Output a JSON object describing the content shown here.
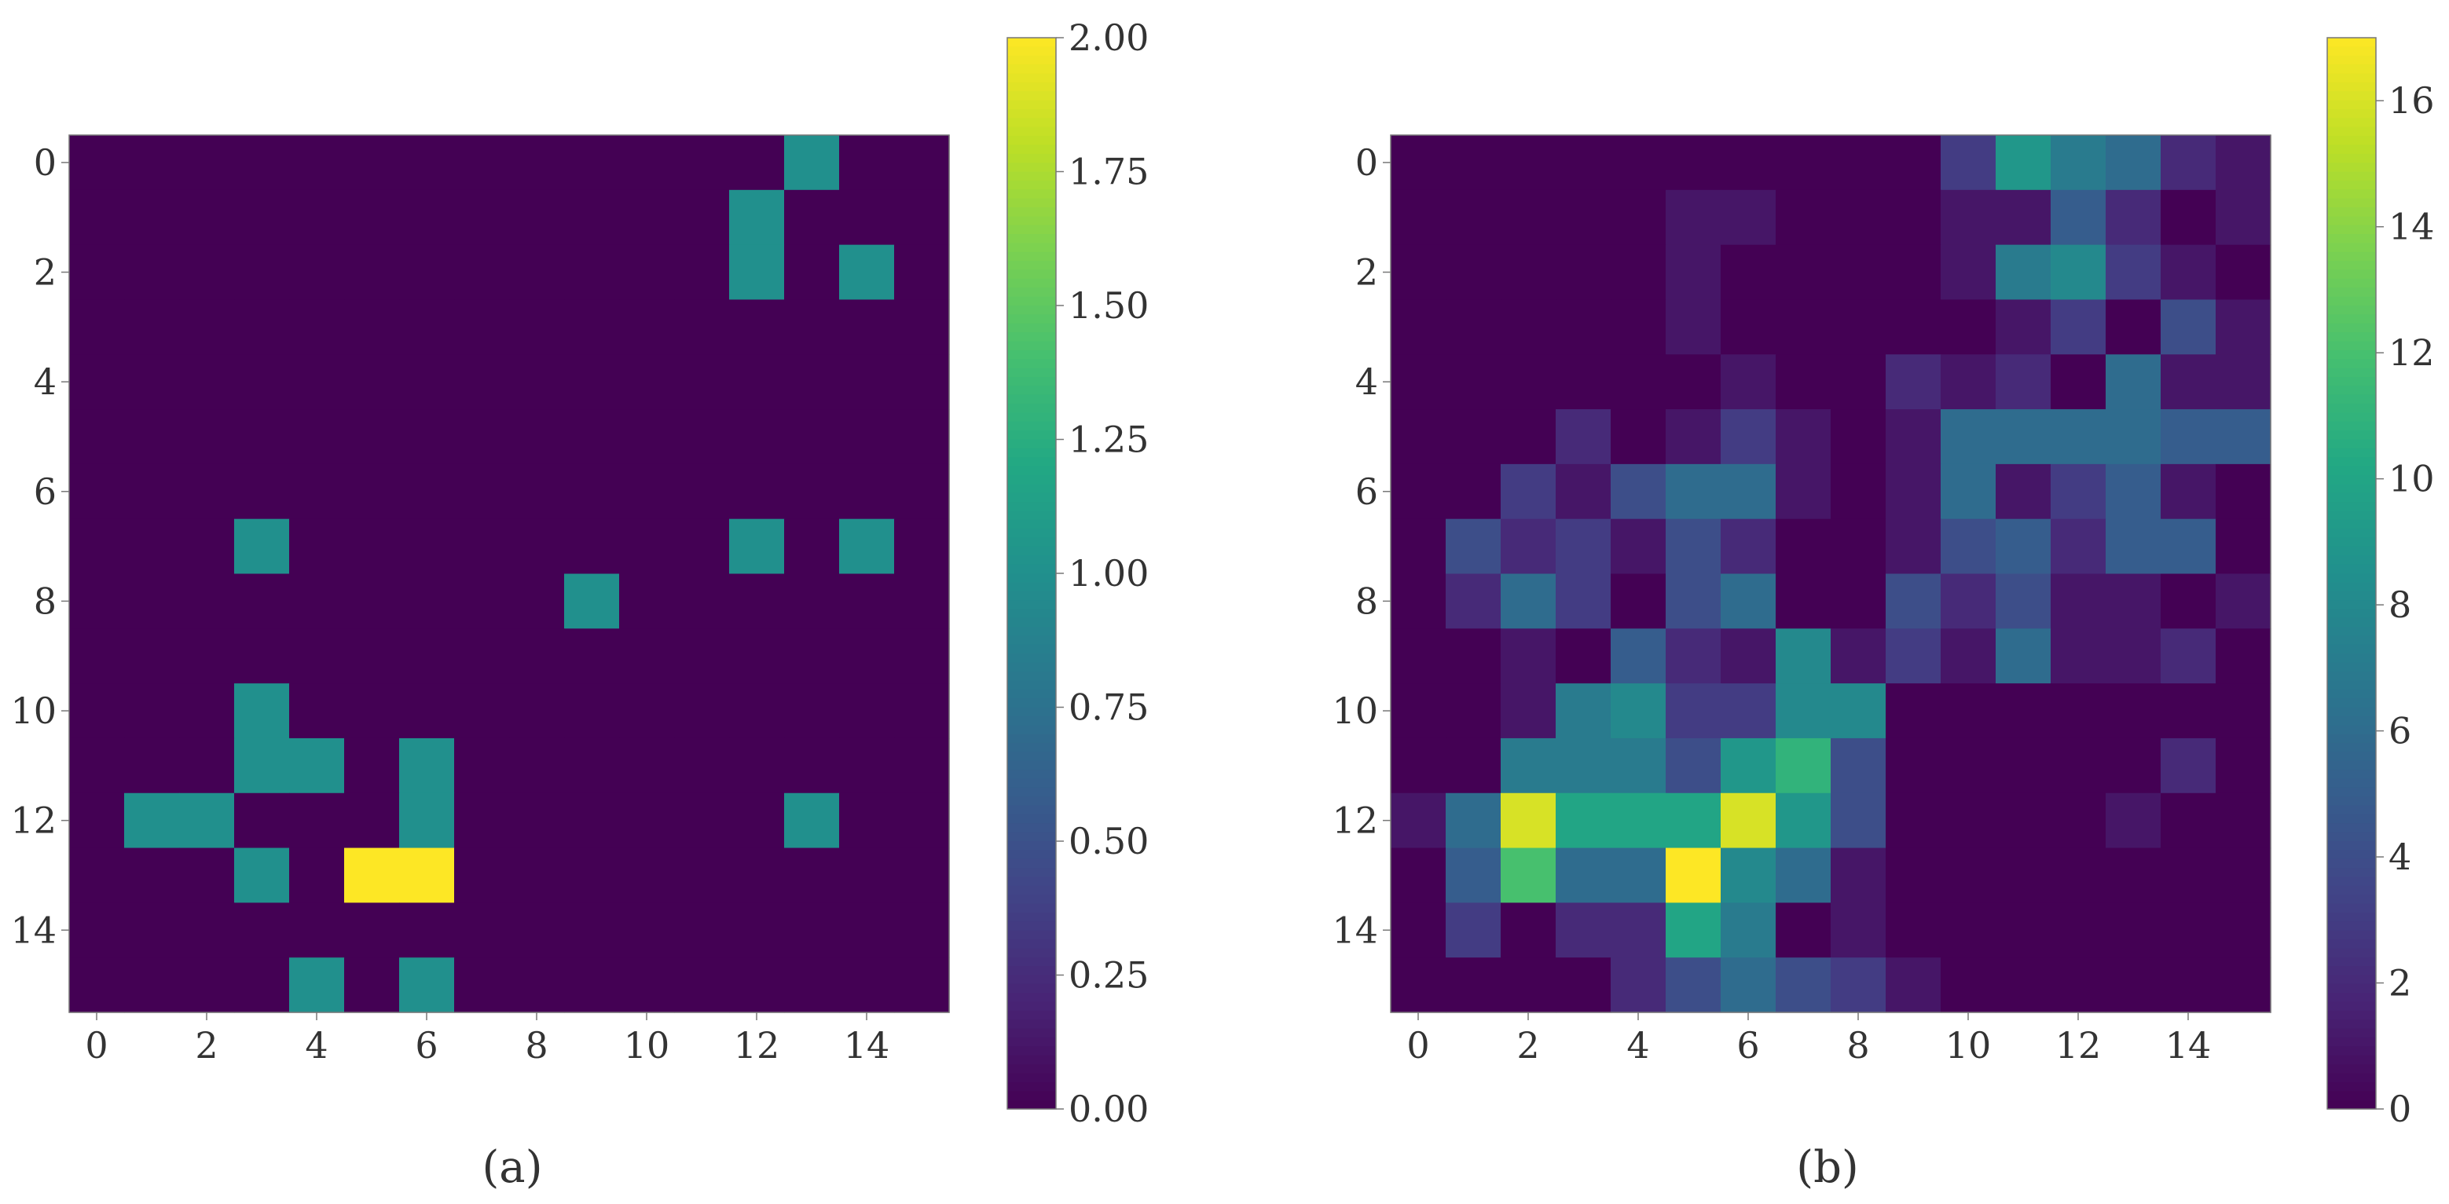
{
  "colors": {
    "colormap": "viridis",
    "frame": "#777777",
    "text": "#333333"
  },
  "chart_data": [
    {
      "type": "heatmap",
      "caption": "(a)",
      "rows": 16,
      "cols": 16,
      "vmin": 0,
      "vmax": 2,
      "x_ticks": [
        0,
        2,
        4,
        6,
        8,
        10,
        12,
        14
      ],
      "y_ticks": [
        0,
        2,
        4,
        6,
        8,
        10,
        12,
        14
      ],
      "tick_labels": {
        "x": [
          "0",
          "2",
          "4",
          "6",
          "8",
          "10",
          "12",
          "14"
        ],
        "y": [
          "0",
          "2",
          "4",
          "6",
          "8",
          "10",
          "12",
          "14"
        ]
      },
      "colorbar_ticks": [
        0,
        0.25,
        0.5,
        0.75,
        1,
        1.25,
        1.5,
        1.75,
        2
      ],
      "colorbar_tick_labels": [
        "0.00",
        "0.25",
        "0.50",
        "0.75",
        "1.00",
        "1.25",
        "1.50",
        "1.75",
        "2.00"
      ],
      "values": [
        [
          0,
          0,
          0,
          0,
          0,
          0,
          0,
          0,
          0,
          0,
          0,
          0,
          0,
          1,
          0,
          0
        ],
        [
          0,
          0,
          0,
          0,
          0,
          0,
          0,
          0,
          0,
          0,
          0,
          0,
          1,
          0,
          0,
          0
        ],
        [
          0,
          0,
          0,
          0,
          0,
          0,
          0,
          0,
          0,
          0,
          0,
          0,
          1,
          0,
          1,
          0
        ],
        [
          0,
          0,
          0,
          0,
          0,
          0,
          0,
          0,
          0,
          0,
          0,
          0,
          0,
          0,
          0,
          0
        ],
        [
          0,
          0,
          0,
          0,
          0,
          0,
          0,
          0,
          0,
          0,
          0,
          0,
          0,
          0,
          0,
          0
        ],
        [
          0,
          0,
          0,
          0,
          0,
          0,
          0,
          0,
          0,
          0,
          0,
          0,
          0,
          0,
          0,
          0
        ],
        [
          0,
          0,
          0,
          0,
          0,
          0,
          0,
          0,
          0,
          0,
          0,
          0,
          0,
          0,
          0,
          0
        ],
        [
          0,
          0,
          0,
          1,
          0,
          0,
          0,
          0,
          0,
          0,
          0,
          0,
          1,
          0,
          1,
          0
        ],
        [
          0,
          0,
          0,
          0,
          0,
          0,
          0,
          0,
          0,
          1,
          0,
          0,
          0,
          0,
          0,
          0
        ],
        [
          0,
          0,
          0,
          0,
          0,
          0,
          0,
          0,
          0,
          0,
          0,
          0,
          0,
          0,
          0,
          0
        ],
        [
          0,
          0,
          0,
          1,
          0,
          0,
          0,
          0,
          0,
          0,
          0,
          0,
          0,
          0,
          0,
          0
        ],
        [
          0,
          0,
          0,
          1,
          1,
          0,
          1,
          0,
          0,
          0,
          0,
          0,
          0,
          0,
          0,
          0
        ],
        [
          0,
          1,
          1,
          0,
          0,
          0,
          1,
          0,
          0,
          0,
          0,
          0,
          0,
          1,
          0,
          0
        ],
        [
          0,
          0,
          0,
          1,
          0,
          2,
          2,
          0,
          0,
          0,
          0,
          0,
          0,
          0,
          0,
          0
        ],
        [
          0,
          0,
          0,
          0,
          0,
          0,
          0,
          0,
          0,
          0,
          0,
          0,
          0,
          0,
          0,
          0
        ],
        [
          0,
          0,
          0,
          0,
          1,
          0,
          1,
          0,
          0,
          0,
          0,
          0,
          0,
          0,
          0,
          0
        ]
      ]
    },
    {
      "type": "heatmap",
      "caption": "(b)",
      "rows": 16,
      "cols": 16,
      "vmin": 0,
      "vmax": 17,
      "x_ticks": [
        0,
        2,
        4,
        6,
        8,
        10,
        12,
        14
      ],
      "y_ticks": [
        0,
        2,
        4,
        6,
        8,
        10,
        12,
        14
      ],
      "tick_labels": {
        "x": [
          "0",
          "2",
          "4",
          "6",
          "8",
          "10",
          "12",
          "14"
        ],
        "y": [
          "0",
          "2",
          "4",
          "6",
          "8",
          "10",
          "12",
          "14"
        ]
      },
      "colorbar_ticks": [
        0,
        2,
        4,
        6,
        8,
        10,
        12,
        14,
        16
      ],
      "colorbar_tick_labels": [
        "0",
        "2",
        "4",
        "6",
        "8",
        "10",
        "12",
        "14",
        "16"
      ],
      "values": [
        [
          0,
          0,
          0,
          0,
          0,
          0,
          0,
          0,
          0,
          0,
          3,
          9,
          7,
          6,
          2,
          1
        ],
        [
          0,
          0,
          0,
          0,
          0,
          1,
          1,
          0,
          0,
          0,
          1,
          1,
          5,
          2,
          0,
          1
        ],
        [
          0,
          0,
          0,
          0,
          0,
          1,
          0,
          0,
          0,
          0,
          1,
          7,
          8,
          3,
          1,
          0
        ],
        [
          0,
          0,
          0,
          0,
          0,
          1,
          0,
          0,
          0,
          0,
          0,
          1,
          3,
          0,
          4,
          1
        ],
        [
          0,
          0,
          0,
          0,
          0,
          0,
          1,
          0,
          0,
          2,
          1,
          2,
          0,
          6,
          1,
          1
        ],
        [
          0,
          0,
          0,
          2,
          0,
          1,
          3,
          1,
          0,
          1,
          6,
          6,
          6,
          6,
          5,
          5
        ],
        [
          0,
          0,
          3,
          1,
          4,
          6,
          6,
          1,
          0,
          1,
          6,
          1,
          3,
          5,
          1,
          0
        ],
        [
          0,
          4,
          2,
          3,
          1,
          4,
          2,
          0,
          0,
          1,
          4,
          5,
          2,
          5,
          5,
          0
        ],
        [
          0,
          2,
          6,
          3,
          0,
          4,
          6,
          0,
          0,
          4,
          2,
          4,
          1,
          1,
          0,
          1
        ],
        [
          0,
          0,
          1,
          0,
          5,
          2,
          1,
          8,
          1,
          3,
          1,
          6,
          1,
          1,
          2,
          0
        ],
        [
          0,
          0,
          1,
          7,
          8,
          3,
          3,
          8,
          8,
          0,
          0,
          0,
          0,
          0,
          0,
          0
        ],
        [
          0,
          0,
          7,
          7,
          7,
          4,
          9,
          11,
          4,
          0,
          0,
          0,
          0,
          0,
          2,
          0
        ],
        [
          1,
          6,
          16,
          10,
          10,
          10,
          16,
          9,
          4,
          0,
          0,
          0,
          0,
          1,
          0,
          0
        ],
        [
          0,
          5,
          12,
          6,
          6,
          17,
          8,
          6,
          1,
          0,
          0,
          0,
          0,
          0,
          0,
          0
        ],
        [
          0,
          3,
          0,
          2,
          2,
          10,
          7,
          0,
          1,
          0,
          0,
          0,
          0,
          0,
          0,
          0
        ],
        [
          0,
          0,
          0,
          0,
          2,
          4,
          6,
          4,
          3,
          1,
          0,
          0,
          0,
          0,
          0,
          0
        ]
      ]
    }
  ]
}
